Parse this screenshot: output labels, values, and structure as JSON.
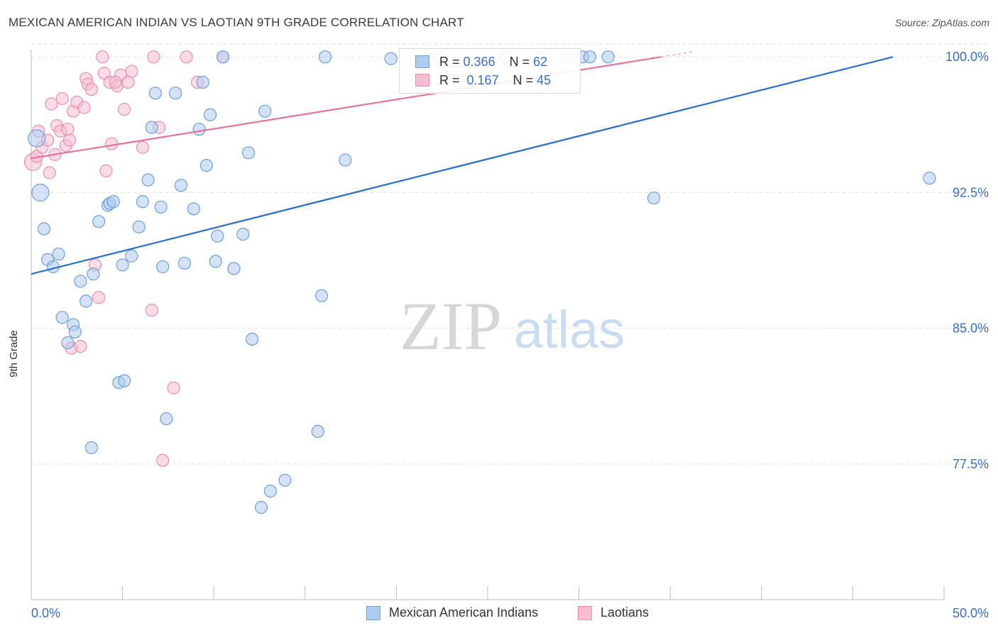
{
  "header": {
    "title": "MEXICAN AMERICAN INDIAN VS LAOTIAN 9TH GRADE CORRELATION CHART",
    "source": "Source: ZipAtlas.com"
  },
  "legend": {
    "blue": {
      "r_label": "R =",
      "r_value": "0.366",
      "n_label": "N =",
      "n_value": "62"
    },
    "pink": {
      "r_label": "R =",
      "r_value": "0.167",
      "n_label": "N =",
      "n_value": "45"
    }
  },
  "bottom_legend": {
    "blue": "Mexican American Indians",
    "pink": "Laotians"
  },
  "watermark": {
    "zip": "ZIP",
    "atlas": "atlas"
  },
  "colors": {
    "blue_fill": "#aecbf0",
    "blue_stroke": "#6f9fdc",
    "blue_line": "#2b6fcf",
    "pink_fill": "#f8bdd0",
    "pink_stroke": "#ec8fae",
    "pink_line": "#e8729a",
    "axis_text": "#3a70c9",
    "grid": "#e3e3e3"
  },
  "chart_data": {
    "type": "scatter",
    "title": "MEXICAN AMERICAN INDIAN VS LAOTIAN 9TH GRADE CORRELATION CHART",
    "xlabel": "",
    "ylabel": "9th Grade",
    "xlim": [
      0,
      50
    ],
    "ylim": [
      70.0,
      100.4
    ],
    "x_tick_labels": [
      "0.0%",
      "50.0%"
    ],
    "y_ticks": [
      77.5,
      85.0,
      92.5,
      100.0
    ],
    "y_tick_labels": [
      "77.5%",
      "85.0%",
      "92.5%",
      "100.0%"
    ],
    "series": [
      {
        "name": "Mexican American Indians",
        "color": "blue",
        "R": 0.366,
        "N": 62,
        "trend": {
          "x0": 0,
          "y0": 88.0,
          "x1": 47.2,
          "y1": 100.0
        },
        "points": [
          [
            0.3,
            95.5
          ],
          [
            0.5,
            92.5
          ],
          [
            0.7,
            90.5
          ],
          [
            0.9,
            88.8
          ],
          [
            1.2,
            88.4
          ],
          [
            1.5,
            89.1
          ],
          [
            1.7,
            85.6
          ],
          [
            2.3,
            85.2
          ],
          [
            2.4,
            84.8
          ],
          [
            2.0,
            84.2
          ],
          [
            2.7,
            87.6
          ],
          [
            3.0,
            86.5
          ],
          [
            3.4,
            88.0
          ],
          [
            3.3,
            78.4
          ],
          [
            3.7,
            90.9
          ],
          [
            4.2,
            91.8
          ],
          [
            4.3,
            91.9
          ],
          [
            4.5,
            92.0
          ],
          [
            4.8,
            82.0
          ],
          [
            5.1,
            82.1
          ],
          [
            5.0,
            88.5
          ],
          [
            5.5,
            89.0
          ],
          [
            5.9,
            90.6
          ],
          [
            6.1,
            92.0
          ],
          [
            6.4,
            93.2
          ],
          [
            6.6,
            96.1
          ],
          [
            6.8,
            98.0
          ],
          [
            7.1,
            91.7
          ],
          [
            7.2,
            88.4
          ],
          [
            7.4,
            80.0
          ],
          [
            7.9,
            98.0
          ],
          [
            8.2,
            92.9
          ],
          [
            8.4,
            88.6
          ],
          [
            8.9,
            91.6
          ],
          [
            9.2,
            96.0
          ],
          [
            9.4,
            98.6
          ],
          [
            9.6,
            94.0
          ],
          [
            9.8,
            96.8
          ],
          [
            10.1,
            88.7
          ],
          [
            10.2,
            90.1
          ],
          [
            10.5,
            100.0
          ],
          [
            11.1,
            88.3
          ],
          [
            11.6,
            90.2
          ],
          [
            11.9,
            94.7
          ],
          [
            12.1,
            84.4
          ],
          [
            12.6,
            75.1
          ],
          [
            12.8,
            97.0
          ],
          [
            13.1,
            76.0
          ],
          [
            13.9,
            76.6
          ],
          [
            15.7,
            79.3
          ],
          [
            15.9,
            86.8
          ],
          [
            16.1,
            100.0
          ],
          [
            17.2,
            94.3
          ],
          [
            19.7,
            99.9
          ],
          [
            22.3,
            100.0
          ],
          [
            26.0,
            100.0
          ],
          [
            29.4,
            100.0
          ],
          [
            30.2,
            100.0
          ],
          [
            31.6,
            100.0
          ],
          [
            34.1,
            92.2
          ],
          [
            49.2,
            93.3
          ],
          [
            30.6,
            100.0
          ]
        ]
      },
      {
        "name": "Laotians",
        "color": "pink",
        "R": 0.167,
        "N": 45,
        "trend": {
          "x0": 0,
          "y0": 94.4,
          "x1": 34.5,
          "y1": 100.0
        },
        "points": [
          [
            0.1,
            94.2
          ],
          [
            0.3,
            94.5
          ],
          [
            0.4,
            95.9
          ],
          [
            0.6,
            95.0
          ],
          [
            0.9,
            95.4
          ],
          [
            1.0,
            93.6
          ],
          [
            1.1,
            97.4
          ],
          [
            1.3,
            94.6
          ],
          [
            1.4,
            96.2
          ],
          [
            1.6,
            95.9
          ],
          [
            1.7,
            97.7
          ],
          [
            1.9,
            95.1
          ],
          [
            2.0,
            96.0
          ],
          [
            2.2,
            83.9
          ],
          [
            2.3,
            97.0
          ],
          [
            2.5,
            97.5
          ],
          [
            2.7,
            84.0
          ],
          [
            2.9,
            97.2
          ],
          [
            3.0,
            98.8
          ],
          [
            3.1,
            98.5
          ],
          [
            3.3,
            98.2
          ],
          [
            3.5,
            88.5
          ],
          [
            3.7,
            86.7
          ],
          [
            3.9,
            100.0
          ],
          [
            4.0,
            99.1
          ],
          [
            4.1,
            93.7
          ],
          [
            4.3,
            98.6
          ],
          [
            4.4,
            95.2
          ],
          [
            4.7,
            98.4
          ],
          [
            4.9,
            99.0
          ],
          [
            5.1,
            97.1
          ],
          [
            5.3,
            98.6
          ],
          [
            5.5,
            99.2
          ],
          [
            6.1,
            95.0
          ],
          [
            6.6,
            86.0
          ],
          [
            6.7,
            100.0
          ],
          [
            7.0,
            96.1
          ],
          [
            7.2,
            77.7
          ],
          [
            7.8,
            81.7
          ],
          [
            8.5,
            100.0
          ],
          [
            9.1,
            98.6
          ],
          [
            10.5,
            100.0
          ],
          [
            2.1,
            95.4
          ],
          [
            4.6,
            98.6
          ],
          [
            28.0,
            100.0
          ]
        ]
      }
    ]
  }
}
